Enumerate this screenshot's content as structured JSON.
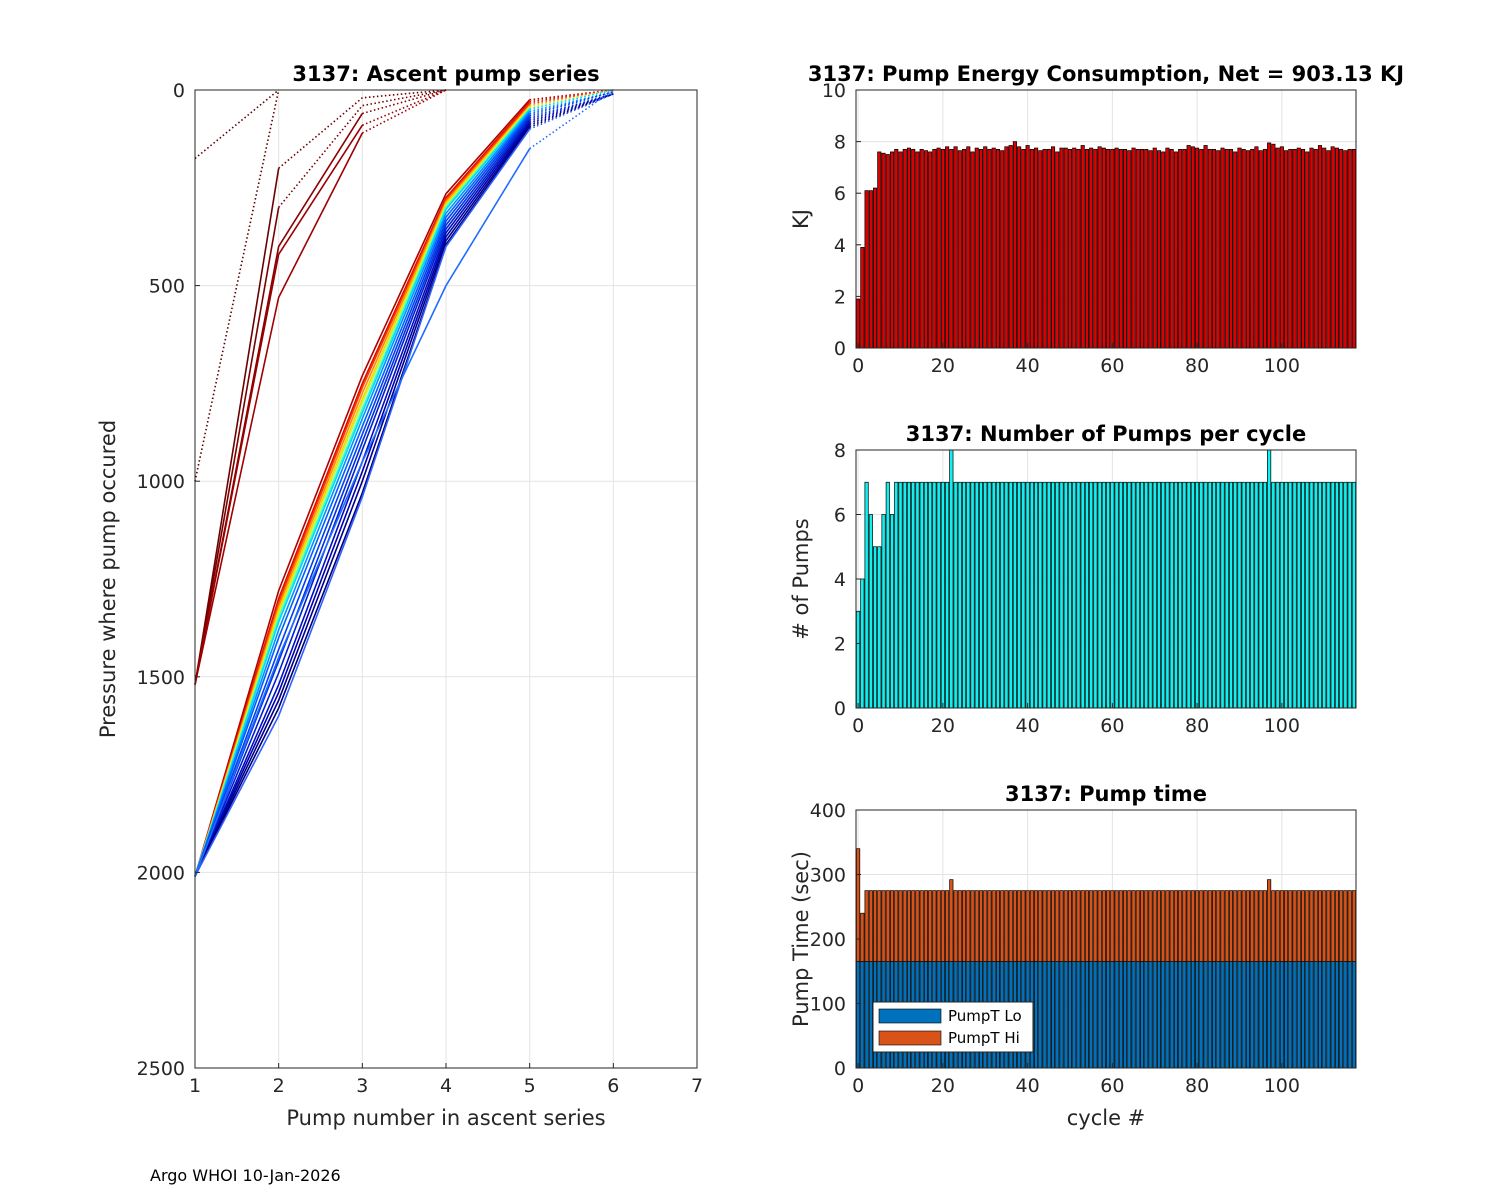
{
  "footer": "Argo WHOI 10-Jan-2026",
  "chart_data": [
    {
      "id": "ascent",
      "type": "line",
      "title": "3137: Ascent pump series",
      "xlabel": "Pump number in ascent series",
      "ylabel": "Pressure where pump occured",
      "xlim": [
        1,
        7
      ],
      "ylim": [
        0,
        2500
      ],
      "y_reversed": true,
      "xticks": [
        1,
        2,
        3,
        4,
        5,
        6,
        7
      ],
      "yticks": [
        0,
        500,
        1000,
        1500,
        2000,
        2500
      ],
      "series_note": "one line per cycle, colored by cycle (dark red early, jet colormap red to blue later); dotted segment to surface",
      "series": [
        {
          "name": "early-a",
          "color": "#5a0000",
          "values": [
            175,
            0
          ],
          "dotted_from": 0
        },
        {
          "name": "early-b",
          "color": "#5a0000",
          "values": [
            1000,
            0
          ],
          "dotted_from": 0
        },
        {
          "name": "early-c",
          "color": "#6a0000",
          "values": [
            1520,
            200,
            20,
            0
          ],
          "dotted_from": 1
        },
        {
          "name": "early-d",
          "color": "#7a0000",
          "values": [
            1520,
            300,
            40,
            0
          ],
          "dotted_from": 1
        },
        {
          "name": "early-e",
          "color": "#8b0000",
          "values": [
            1520,
            400,
            60,
            0
          ],
          "dotted_from": 2
        },
        {
          "name": "early-f",
          "color": "#990000",
          "values": [
            1520,
            420,
            90,
            0
          ],
          "dotted_from": 2
        },
        {
          "name": "early-g",
          "color": "#a00000",
          "values": [
            1520,
            530,
            110,
            0
          ],
          "dotted_from": 2
        },
        {
          "name": "c1",
          "color": "#b00000",
          "values": [
            2010,
            1280,
            730,
            265,
            25,
            0
          ],
          "dotted_from": 4
        },
        {
          "name": "c2",
          "color": "#d81000",
          "values": [
            2010,
            1300,
            750,
            275,
            30,
            0
          ],
          "dotted_from": 4
        },
        {
          "name": "c3",
          "color": "#ff3300",
          "values": [
            2010,
            1310,
            760,
            280,
            35,
            0
          ],
          "dotted_from": 4
        },
        {
          "name": "c4",
          "color": "#ff8a00",
          "values": [
            2010,
            1320,
            775,
            285,
            40,
            0
          ],
          "dotted_from": 4
        },
        {
          "name": "c5",
          "color": "#ffd000",
          "values": [
            2010,
            1330,
            790,
            290,
            42,
            0
          ],
          "dotted_from": 4
        },
        {
          "name": "c6",
          "color": "#b8ff40",
          "values": [
            2010,
            1340,
            800,
            295,
            45,
            0
          ],
          "dotted_from": 4
        },
        {
          "name": "c7",
          "color": "#40ffc0",
          "values": [
            2010,
            1350,
            815,
            300,
            48,
            0
          ],
          "dotted_from": 4
        },
        {
          "name": "c8",
          "color": "#00d8ff",
          "values": [
            2010,
            1360,
            825,
            305,
            50,
            0
          ],
          "dotted_from": 4
        },
        {
          "name": "c9",
          "color": "#0090ff",
          "values": [
            2010,
            1380,
            840,
            315,
            55,
            5
          ],
          "dotted_from": 4
        },
        {
          "name": "c10",
          "color": "#0060ff",
          "values": [
            2010,
            1400,
            860,
            325,
            60,
            5
          ],
          "dotted_from": 4
        },
        {
          "name": "c11",
          "color": "#0040f0",
          "values": [
            2010,
            1430,
            880,
            335,
            65,
            5
          ],
          "dotted_from": 4
        },
        {
          "name": "c12",
          "color": "#0030e0",
          "values": [
            2010,
            1460,
            900,
            345,
            70,
            10
          ],
          "dotted_from": 4
        },
        {
          "name": "c13",
          "color": "#0020d0",
          "values": [
            2010,
            1490,
            920,
            355,
            75,
            10
          ],
          "dotted_from": 4
        },
        {
          "name": "c14",
          "color": "#0010c0",
          "values": [
            2010,
            1520,
            950,
            365,
            80,
            10
          ],
          "dotted_from": 4
        },
        {
          "name": "c15",
          "color": "#0000b0",
          "values": [
            2010,
            1540,
            975,
            375,
            85,
            10
          ],
          "dotted_from": 4
        },
        {
          "name": "c16",
          "color": "#000090",
          "values": [
            2010,
            1560,
            1000,
            385,
            90,
            10
          ],
          "dotted_from": 4
        },
        {
          "name": "c17",
          "color": "#00007a",
          "values": [
            2010,
            1580,
            1030,
            395,
            95,
            10
          ],
          "dotted_from": 4
        },
        {
          "name": "c18",
          "color": "#3060ff",
          "values": [
            2010,
            1600,
            1040,
            400,
            100,
            10
          ],
          "dotted_from": 4
        },
        {
          "name": "c19",
          "color": "#1e6cff",
          "values": [
            2010,
            1450,
            950,
            500,
            150,
            0
          ],
          "dotted_from": 4
        }
      ]
    },
    {
      "id": "energy",
      "type": "bar",
      "title": "3137: Pump Energy Consumption,  Net = 903.13 KJ",
      "xlabel": "",
      "ylabel": "KJ",
      "xlim": [
        -0.5,
        117.5
      ],
      "ylim": [
        0,
        10
      ],
      "xticks": [
        0,
        20,
        40,
        60,
        80,
        100
      ],
      "yticks": [
        0,
        2,
        4,
        6,
        8,
        10
      ],
      "color": "#dd0000",
      "start_cycle": 0,
      "values": [
        1.9,
        3.9,
        6.1,
        6.1,
        6.2,
        7.6,
        7.55,
        7.5,
        7.6,
        7.7,
        7.6,
        7.7,
        7.75,
        7.7,
        7.6,
        7.7,
        7.65,
        7.6,
        7.7,
        7.75,
        7.7,
        7.8,
        7.7,
        7.8,
        7.65,
        7.7,
        7.8,
        7.6,
        7.75,
        7.7,
        7.8,
        7.7,
        7.75,
        7.7,
        7.65,
        7.8,
        7.85,
        8.0,
        7.8,
        7.7,
        7.85,
        7.7,
        7.75,
        7.65,
        7.7,
        7.7,
        7.8,
        7.6,
        7.75,
        7.75,
        7.7,
        7.75,
        7.7,
        7.85,
        7.7,
        7.75,
        7.7,
        7.8,
        7.75,
        7.7,
        7.7,
        7.75,
        7.7,
        7.7,
        7.65,
        7.75,
        7.7,
        7.7,
        7.7,
        7.65,
        7.75,
        7.65,
        7.6,
        7.75,
        7.7,
        7.6,
        7.7,
        7.7,
        7.85,
        7.8,
        7.75,
        7.7,
        7.85,
        7.7,
        7.7,
        7.65,
        7.75,
        7.7,
        7.7,
        7.6,
        7.75,
        7.7,
        7.65,
        7.7,
        7.8,
        7.65,
        7.7,
        7.95,
        7.9,
        7.75,
        7.8,
        7.65,
        7.7,
        7.7,
        7.75,
        7.7,
        7.6,
        7.75,
        7.7,
        7.85,
        7.75,
        7.65,
        7.8,
        7.75,
        7.7,
        7.65,
        7.7,
        7.7
      ]
    },
    {
      "id": "npumps",
      "type": "bar",
      "title": "3137: Number of Pumps per cycle",
      "xlabel": "",
      "ylabel": "# of Pumps",
      "xlim": [
        -0.5,
        117.5
      ],
      "ylim": [
        0,
        8
      ],
      "xticks": [
        0,
        20,
        40,
        60,
        80,
        100
      ],
      "yticks": [
        0,
        2,
        4,
        6,
        8
      ],
      "color": "#11f0f0",
      "start_cycle": 0,
      "values": [
        3,
        4,
        7,
        6,
        5,
        5,
        6,
        7,
        6,
        7,
        7,
        7,
        7,
        7,
        7,
        7,
        7,
        7,
        7,
        7,
        7,
        7,
        8,
        7,
        7,
        7,
        7,
        7,
        7,
        7,
        7,
        7,
        7,
        7,
        7,
        7,
        7,
        7,
        7,
        7,
        7,
        7,
        7,
        7,
        7,
        7,
        7,
        7,
        7,
        7,
        7,
        7,
        7,
        7,
        7,
        7,
        7,
        7,
        7,
        7,
        7,
        7,
        7,
        7,
        7,
        7,
        7,
        7,
        7,
        7,
        7,
        7,
        7,
        7,
        7,
        7,
        7,
        7,
        7,
        7,
        7,
        7,
        7,
        7,
        7,
        7,
        7,
        7,
        7,
        7,
        7,
        7,
        7,
        7,
        7,
        7,
        7,
        8,
        7,
        7,
        7,
        7,
        7,
        7,
        7,
        7,
        7,
        7,
        7,
        7,
        7,
        7,
        7,
        7,
        7,
        7,
        7,
        7
      ]
    },
    {
      "id": "pumptime",
      "type": "bar",
      "stacked": true,
      "title": "3137: Pump time",
      "xlabel": "cycle #",
      "ylabel": "Pump Time (sec)",
      "xlim": [
        -0.5,
        117.5
      ],
      "ylim": [
        0,
        400
      ],
      "xticks": [
        0,
        20,
        40,
        60,
        80,
        100
      ],
      "yticks": [
        0,
        100,
        200,
        300,
        400
      ],
      "legend": "bottom-left",
      "start_cycle": 0,
      "series": [
        {
          "name": "PumpT Lo",
          "color": "#0072bd",
          "values": [
            165,
            165,
            165,
            165,
            165,
            165,
            165,
            165,
            165,
            165,
            165,
            165,
            165,
            165,
            165,
            165,
            165,
            165,
            165,
            165,
            165,
            165,
            165,
            165,
            165,
            165,
            165,
            165,
            165,
            165,
            165,
            165,
            165,
            165,
            165,
            165,
            165,
            165,
            165,
            165,
            165,
            165,
            165,
            165,
            165,
            165,
            165,
            165,
            165,
            165,
            165,
            165,
            165,
            165,
            165,
            165,
            165,
            165,
            165,
            165,
            165,
            165,
            165,
            165,
            165,
            165,
            165,
            165,
            165,
            165,
            165,
            165,
            165,
            165,
            165,
            165,
            165,
            165,
            165,
            165,
            165,
            165,
            165,
            165,
            165,
            165,
            165,
            165,
            165,
            165,
            165,
            165,
            165,
            165,
            165,
            165,
            165,
            165,
            165,
            165,
            165,
            165,
            165,
            165,
            165,
            165,
            165,
            165,
            165,
            165,
            165,
            165,
            165,
            165,
            165,
            165,
            165,
            165
          ]
        },
        {
          "name": "PumpT Hi",
          "color": "#d95319",
          "values": [
            175,
            75,
            110,
            110,
            110,
            110,
            110,
            110,
            110,
            110,
            110,
            110,
            110,
            110,
            110,
            110,
            110,
            110,
            110,
            110,
            110,
            110,
            127,
            110,
            110,
            110,
            110,
            110,
            110,
            110,
            110,
            110,
            110,
            110,
            110,
            110,
            110,
            110,
            110,
            110,
            110,
            110,
            110,
            110,
            110,
            110,
            110,
            110,
            110,
            110,
            110,
            110,
            110,
            110,
            110,
            110,
            110,
            110,
            110,
            110,
            110,
            110,
            110,
            110,
            110,
            110,
            110,
            110,
            110,
            110,
            110,
            110,
            110,
            110,
            110,
            110,
            110,
            110,
            110,
            110,
            110,
            110,
            110,
            110,
            110,
            110,
            110,
            110,
            110,
            110,
            110,
            110,
            110,
            110,
            110,
            110,
            110,
            127,
            110,
            110,
            110,
            110,
            110,
            110,
            110,
            110,
            110,
            110,
            110,
            110,
            110,
            110,
            110,
            110,
            110,
            110,
            110,
            110
          ]
        }
      ]
    }
  ]
}
